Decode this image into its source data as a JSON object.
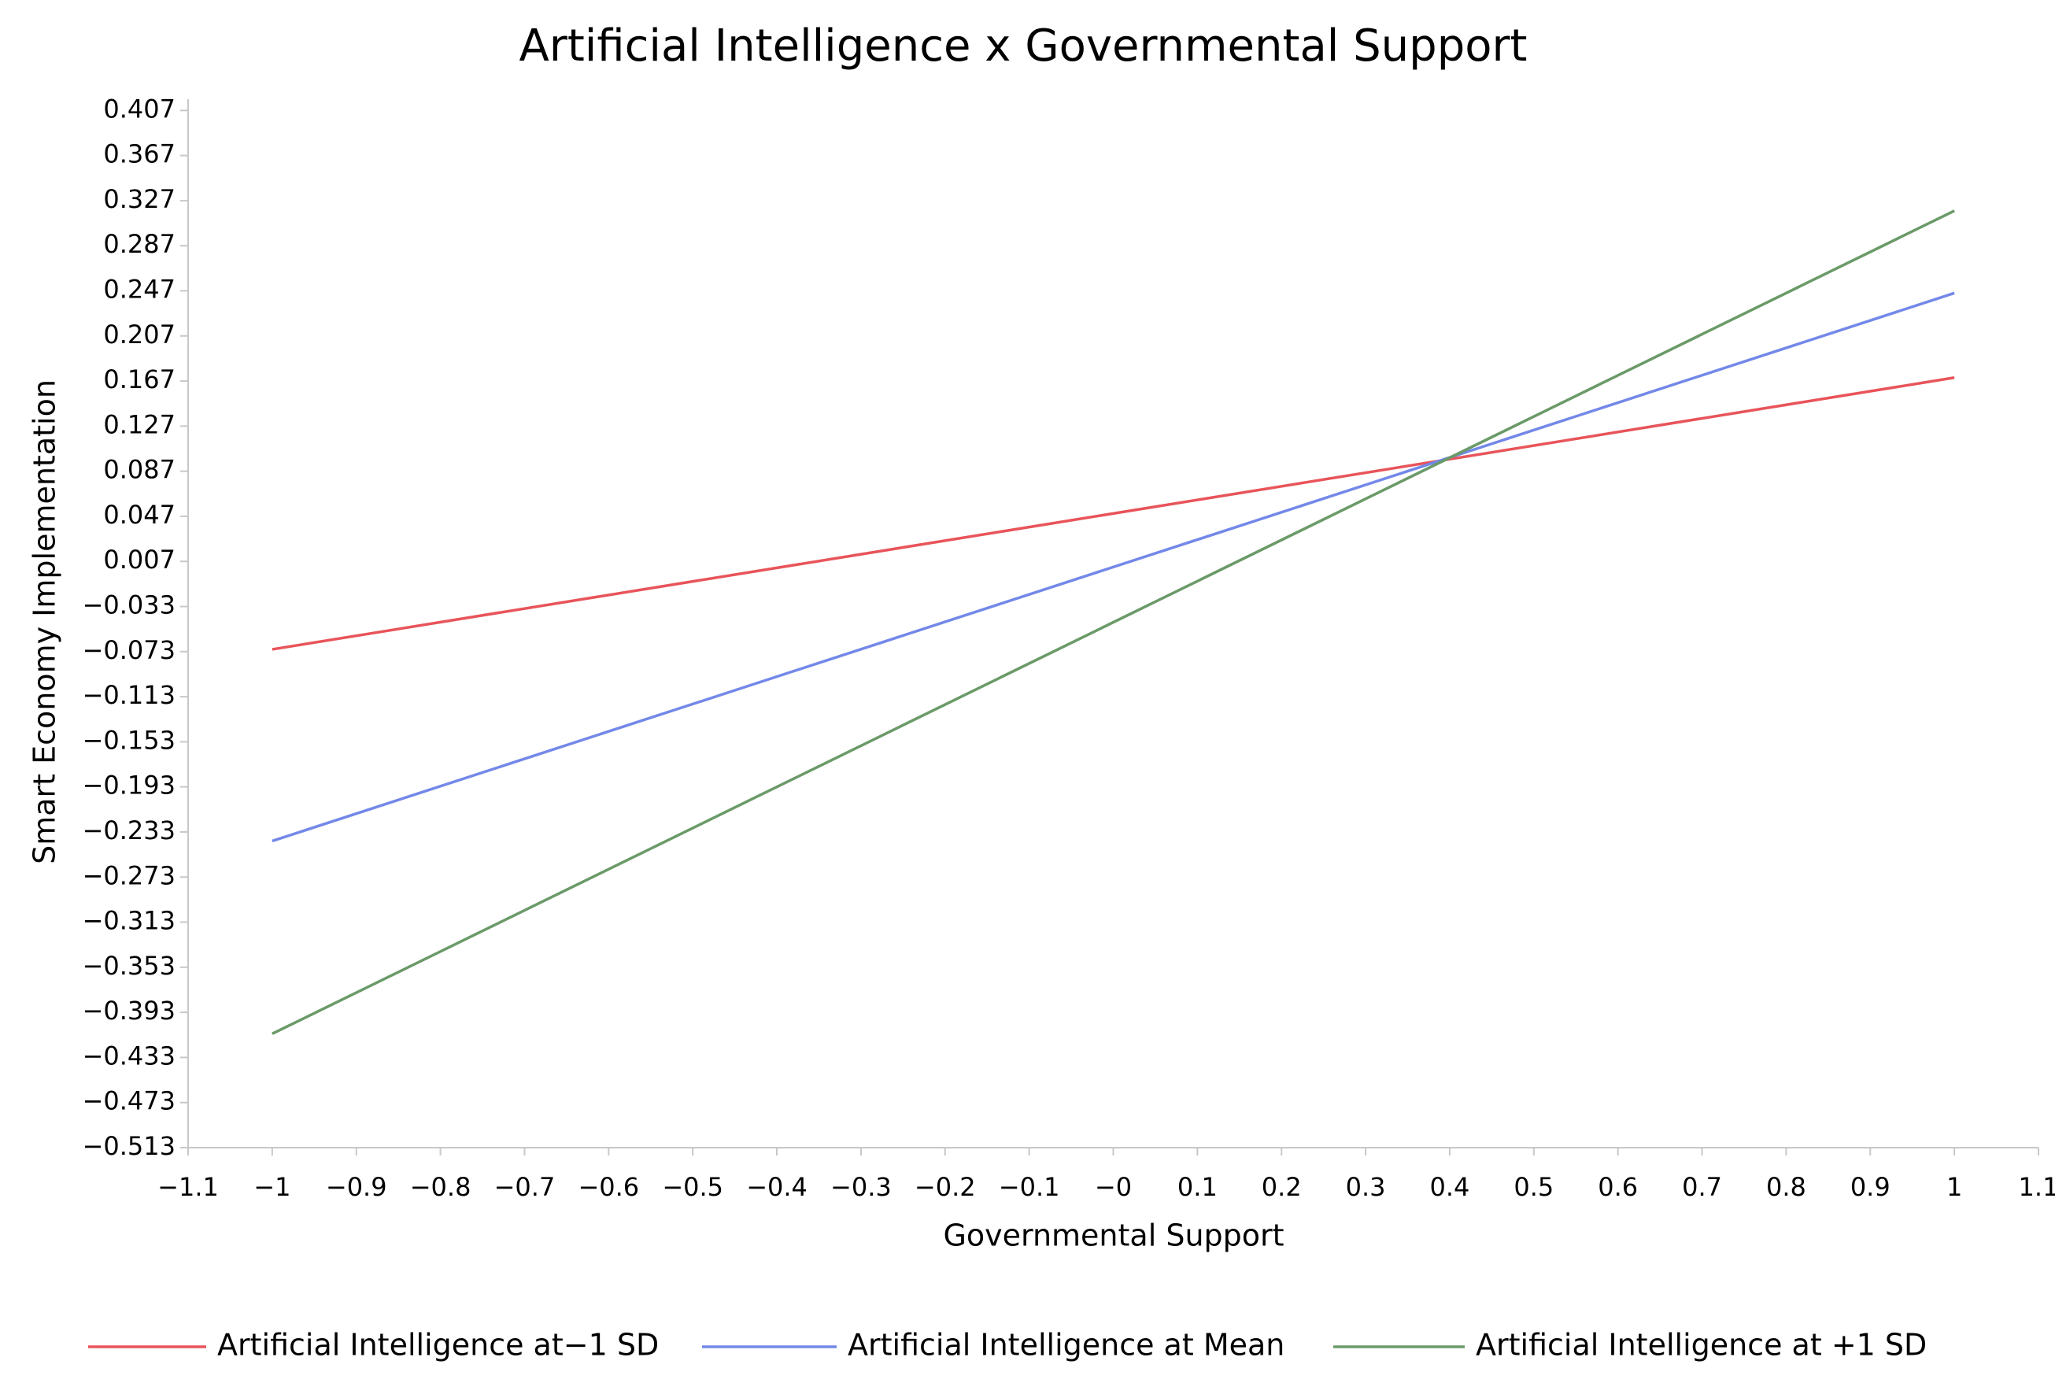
{
  "chart_data": {
    "type": "line",
    "title": "Artificial Intelligence x Governmental Support",
    "x_label": "Governmental Support",
    "y_label": "Smart Economy Implementation",
    "x": [
      -1,
      1
    ],
    "series": [
      {
        "name": "Artificial Intelligence at−1 SD",
        "color": "#e8545a",
        "values": [
          -0.071,
          0.17
        ]
      },
      {
        "name": "Artificial Intelligence at Mean",
        "color": "#7388e8",
        "values": [
          -0.241,
          0.245
        ]
      },
      {
        "name": "Artificial Intelligence at +1 SD",
        "color": "#6a9a68",
        "values": [
          -0.412,
          0.318
        ]
      }
    ],
    "xlim": [
      -1.1,
      1.1
    ],
    "xticks": [
      {
        "value": -1.1,
        "label": "−1.1"
      },
      {
        "value": -1,
        "label": "−1"
      },
      {
        "value": -0.9,
        "label": "−0.9"
      },
      {
        "value": -0.8,
        "label": "−0.8"
      },
      {
        "value": -0.7,
        "label": "−0.7"
      },
      {
        "value": -0.6,
        "label": "−0.6"
      },
      {
        "value": -0.5,
        "label": "−0.5"
      },
      {
        "value": -0.4,
        "label": "−0.4"
      },
      {
        "value": -0.3,
        "label": "−0.3"
      },
      {
        "value": -0.2,
        "label": "−0.2"
      },
      {
        "value": -0.1,
        "label": "−0.1"
      },
      {
        "value": 0,
        "label": "−0"
      },
      0.1,
      0.2,
      0.3,
      0.4,
      0.5,
      0.6,
      0.7,
      0.8,
      0.9,
      1,
      1.1
    ],
    "ylim": [
      -0.513,
      0.417
    ],
    "yticks": [
      0.407,
      0.367,
      0.327,
      0.287,
      0.247,
      0.207,
      0.167,
      0.127,
      0.087,
      0.047,
      0.007,
      {
        "value": -0.033,
        "label": "−0.033"
      },
      {
        "value": -0.073,
        "label": "−0.073"
      },
      {
        "value": -0.113,
        "label": "−0.113"
      },
      {
        "value": -0.153,
        "label": "−0.153"
      },
      {
        "value": -0.193,
        "label": "−0.193"
      },
      {
        "value": -0.233,
        "label": "−0.233"
      },
      {
        "value": -0.273,
        "label": "−0.273"
      },
      {
        "value": -0.313,
        "label": "−0.313"
      },
      {
        "value": -0.353,
        "label": "−0.353"
      },
      {
        "value": -0.393,
        "label": "−0.393"
      },
      {
        "value": -0.433,
        "label": "−0.433"
      },
      {
        "value": -0.473,
        "label": "−0.473"
      },
      {
        "value": -0.513,
        "label": "−0.513"
      }
    ],
    "grid": false,
    "legend_position": "bottom"
  }
}
